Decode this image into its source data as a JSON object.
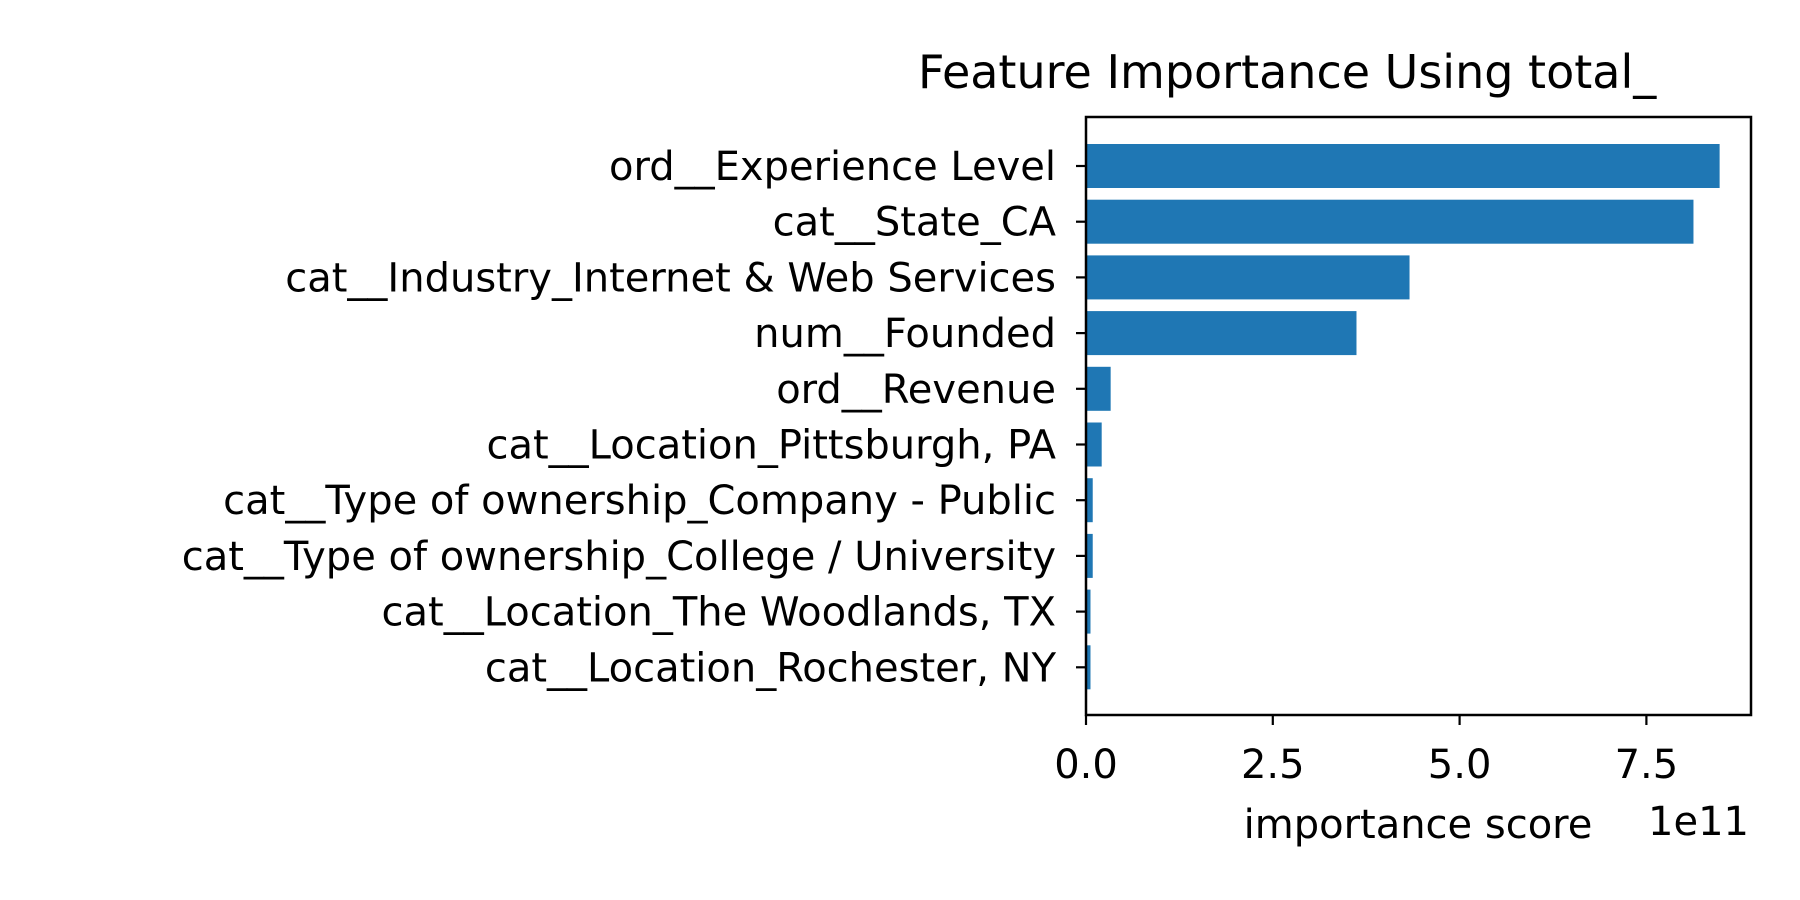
{
  "chart_data": {
    "type": "bar",
    "orientation": "horizontal",
    "title": "Feature Importance Using total_",
    "xlabel": "importance score",
    "x_offset_label": "1e11",
    "ylabel": "",
    "xlim": [
      0,
      8.9
    ],
    "xticks": [
      "0.0",
      "2.5",
      "5.0",
      "7.5"
    ],
    "xtick_values": [
      0,
      2.5,
      5.0,
      7.5
    ],
    "grid": false,
    "bar_color": "#1f77b4",
    "categories": [
      "ord__Experience Level",
      "cat__State_CA",
      "cat__Industry_Internet & Web Services",
      "num__Founded",
      "ord__Revenue",
      "cat__Location_Pittsburgh, PA",
      "cat__Type of ownership_Company - Public",
      "cat__Type of ownership_College / University",
      "cat__Location_The Woodlands, TX",
      "cat__Location_Rochester, NY"
    ],
    "values": [
      8.48,
      8.13,
      4.33,
      3.62,
      0.33,
      0.21,
      0.09,
      0.09,
      0.06,
      0.06
    ]
  }
}
